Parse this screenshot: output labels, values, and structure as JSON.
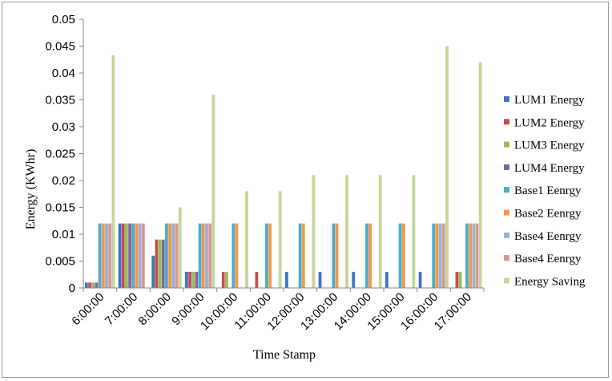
{
  "chart_data": {
    "type": "bar",
    "title": "",
    "xlabel": "Time Stamp",
    "ylabel": "Energy (KWhr)",
    "ylim": [
      0,
      0.05
    ],
    "yticks": [
      "0",
      "0.005",
      "0.01",
      "0.015",
      "0.02",
      "0.025",
      "0.03",
      "0.035",
      "0.04",
      "0.045",
      "0.05"
    ],
    "grid": false,
    "legend_position": "right",
    "categories": [
      "6:00:00",
      "7:00:00",
      "8:00:00",
      "9:00:00",
      "10:00:00",
      "11:00:00",
      "12:00:00",
      "13:00:00",
      "14:00:00",
      "15:00:00",
      "16:00:00",
      "17:00:00"
    ],
    "series": [
      {
        "name": "LUM1 Energy",
        "color": "#4472C4",
        "values": [
          0.001,
          0.012,
          0.006,
          0.003,
          0,
          0,
          0.003,
          0.003,
          0.003,
          0.003,
          0.003,
          0
        ]
      },
      {
        "name": "LUM2 Energy",
        "color": "#C0504D",
        "values": [
          0.001,
          0.012,
          0.009,
          0.003,
          0.003,
          0.003,
          0,
          0,
          0,
          0,
          0,
          0.003
        ]
      },
      {
        "name": "LUM3 Energy",
        "color": "#9BBB59",
        "values": [
          0.001,
          0.012,
          0.009,
          0.003,
          0.003,
          0,
          0,
          0,
          0,
          0,
          0,
          0.003
        ]
      },
      {
        "name": "LUM4 Energy",
        "color": "#8064A2",
        "values": [
          0.001,
          0.012,
          0.009,
          0.003,
          0,
          0,
          0,
          0,
          0,
          0,
          0,
          0
        ]
      },
      {
        "name": "Base1 Eenrgy",
        "color": "#4BACC6",
        "values": [
          0.012,
          0.012,
          0.012,
          0.012,
          0.012,
          0.012,
          0.012,
          0.012,
          0.012,
          0.012,
          0.012,
          0.012
        ]
      },
      {
        "name": "Base2 Eenrgy",
        "color": "#F79646",
        "values": [
          0.012,
          0.012,
          0.012,
          0.012,
          0.012,
          0.012,
          0.012,
          0.012,
          0.012,
          0.012,
          0.012,
          0.012
        ]
      },
      {
        "name": "Base4 Eenrgy",
        "color": "#95B3D7",
        "values": [
          0.012,
          0.012,
          0.012,
          0.012,
          0,
          0,
          0,
          0,
          0,
          0,
          0.012,
          0.012
        ]
      },
      {
        "name": "Base4 Eenrgy",
        "color": "#D99795",
        "values": [
          0.012,
          0.012,
          0.012,
          0.012,
          0,
          0,
          0,
          0,
          0,
          0,
          0.012,
          0.012
        ]
      },
      {
        "name": "Energy Saving",
        "color": "#C3D69B",
        "values": [
          0.0433,
          0,
          0.015,
          0.036,
          0.018,
          0.018,
          0.021,
          0.021,
          0.021,
          0.021,
          0.045,
          0.042
        ]
      }
    ]
  }
}
